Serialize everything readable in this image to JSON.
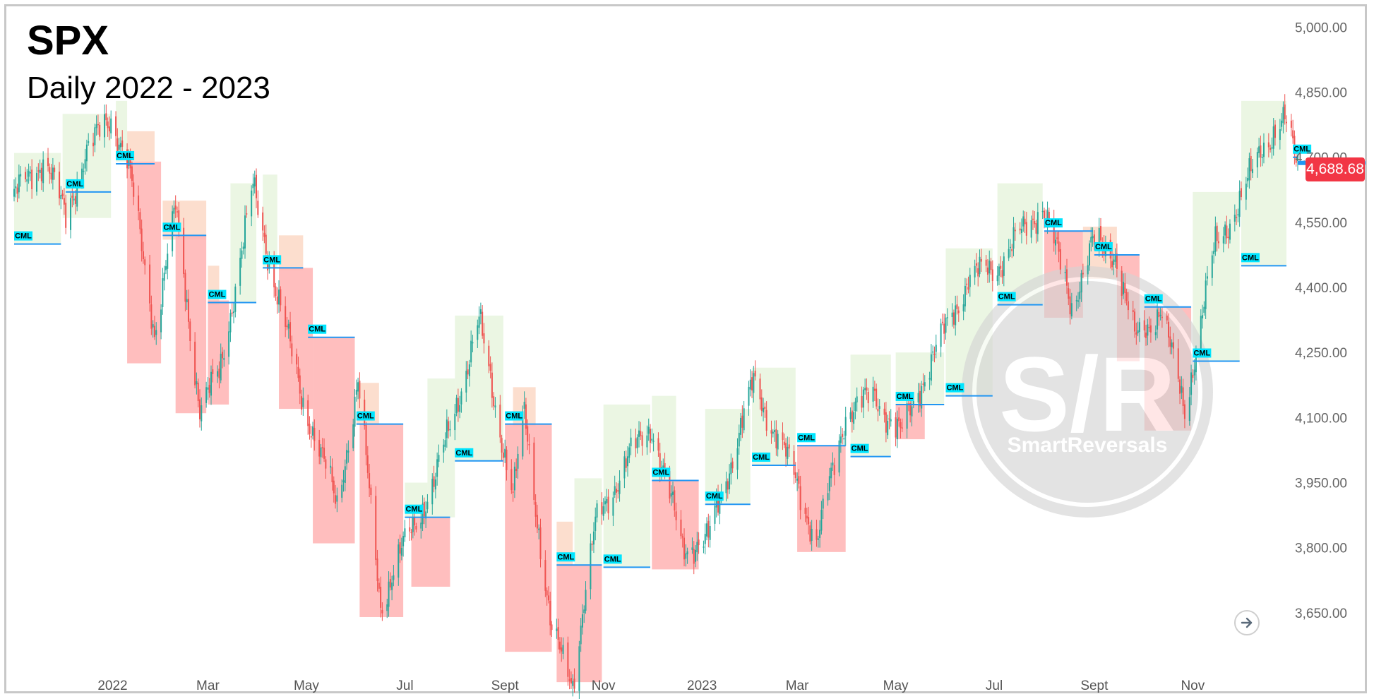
{
  "title": "SPX",
  "subtitle": "Daily 2022 - 2023",
  "price_label": "4,688.68",
  "marker_label": "CML",
  "watermark": {
    "logo": "S/R",
    "brand": "SmartReversals"
  },
  "colors": {
    "up_candle": "#26a69a",
    "down_candle": "#ef5350",
    "bull_zone": "#e6f4dc",
    "bear_zone": "#ffb3b3",
    "warn_zone": "#fbd3bd",
    "cml_line": "#2196f3",
    "cml_tag": "#00e5ff",
    "price_badge": "#f23645"
  },
  "icons": {
    "scroll_button": "arrow-right-circle-icon"
  },
  "chart_data": {
    "type": "candlestick",
    "title": "SPX",
    "subtitle": "Daily 2022 - 2023",
    "y_axis": {
      "ticks": [
        "5,000.00",
        "4,850.00",
        "4,700.00",
        "4,550.00",
        "4,400.00",
        "4,250.00",
        "4,100.00",
        "3,950.00",
        "3,800.00",
        "3,650.00"
      ],
      "ylim": [
        3500,
        5030
      ]
    },
    "x_axis": {
      "ticks": [
        "2022",
        "Mar",
        "May",
        "Jul",
        "Sept",
        "Nov",
        "2023",
        "Mar",
        "May",
        "Jul",
        "Sept",
        "Nov"
      ]
    },
    "last_price": 4688.68,
    "price_path": [
      [
        "2021-11-01",
        4610
      ],
      [
        "2021-11-20",
        4700
      ],
      [
        "2021-12-03",
        4560
      ],
      [
        "2021-12-15",
        4710
      ],
      [
        "2021-12-31",
        4790
      ],
      [
        "2022-01-10",
        4700
      ],
      [
        "2022-01-27",
        4300
      ],
      [
        "2022-02-09",
        4580
      ],
      [
        "2022-02-24",
        4120
      ],
      [
        "2022-03-08",
        4200
      ],
      [
        "2022-03-29",
        4630
      ],
      [
        "2022-04-12",
        4400
      ],
      [
        "2022-04-28",
        4150
      ],
      [
        "2022-05-20",
        3900
      ],
      [
        "2022-06-02",
        4180
      ],
      [
        "2022-06-16",
        3670
      ],
      [
        "2022-06-30",
        3800
      ],
      [
        "2022-07-20",
        3960
      ],
      [
        "2022-08-16",
        4320
      ],
      [
        "2022-09-06",
        3920
      ],
      [
        "2022-09-13",
        4110
      ],
      [
        "2022-09-30",
        3600
      ],
      [
        "2022-10-13",
        3490
      ],
      [
        "2022-10-20",
        3680
      ],
      [
        "2022-10-27",
        3850
      ],
      [
        "2022-11-15",
        4000
      ],
      [
        "2022-12-01",
        4080
      ],
      [
        "2022-12-20",
        3800
      ],
      [
        "2023-01-05",
        3820
      ],
      [
        "2023-02-02",
        4180
      ],
      [
        "2023-03-01",
        3950
      ],
      [
        "2023-03-13",
        3810
      ],
      [
        "2023-03-31",
        4110
      ],
      [
        "2023-04-18",
        4150
      ],
      [
        "2023-05-04",
        4060
      ],
      [
        "2023-05-19",
        4200
      ],
      [
        "2023-06-15",
        4420
      ],
      [
        "2023-07-03",
        4450
      ],
      [
        "2023-07-31",
        4590
      ],
      [
        "2023-08-18",
        4360
      ],
      [
        "2023-08-31",
        4500
      ],
      [
        "2023-09-14",
        4480
      ],
      [
        "2023-09-26",
        4280
      ],
      [
        "2023-10-12",
        4350
      ],
      [
        "2023-10-27",
        4120
      ],
      [
        "2023-11-15",
        4500
      ],
      [
        "2023-12-01",
        4600
      ],
      [
        "2023-12-14",
        4730
      ],
      [
        "2023-12-28",
        4780
      ],
      [
        "2024-01-05",
        4688.68
      ]
    ],
    "cml_levels": [
      {
        "start": "2021-11-01",
        "end": "2021-11-30",
        "value": 4500
      },
      {
        "start": "2021-12-03",
        "end": "2021-12-31",
        "value": 4620
      },
      {
        "start": "2022-01-03",
        "end": "2022-01-27",
        "value": 4685
      },
      {
        "start": "2022-02-01",
        "end": "2022-02-28",
        "value": 4520
      },
      {
        "start": "2022-03-01",
        "end": "2022-03-31",
        "value": 4365
      },
      {
        "start": "2022-04-04",
        "end": "2022-04-29",
        "value": 4445
      },
      {
        "start": "2022-05-02",
        "end": "2022-05-31",
        "value": 4285
      },
      {
        "start": "2022-06-01",
        "end": "2022-06-30",
        "value": 4085
      },
      {
        "start": "2022-07-01",
        "end": "2022-07-29",
        "value": 3870
      },
      {
        "start": "2022-08-01",
        "end": "2022-08-31",
        "value": 4000
      },
      {
        "start": "2022-09-01",
        "end": "2022-09-30",
        "value": 4085
      },
      {
        "start": "2022-10-03",
        "end": "2022-10-31",
        "value": 3760
      },
      {
        "start": "2022-11-01",
        "end": "2022-11-30",
        "value": 3755
      },
      {
        "start": "2022-12-01",
        "end": "2022-12-30",
        "value": 3955
      },
      {
        "start": "2023-01-03",
        "end": "2023-01-31",
        "value": 3900
      },
      {
        "start": "2023-02-01",
        "end": "2023-02-28",
        "value": 3990
      },
      {
        "start": "2023-03-01",
        "end": "2023-03-31",
        "value": 4035
      },
      {
        "start": "2023-04-03",
        "end": "2023-04-28",
        "value": 4010
      },
      {
        "start": "2023-05-01",
        "end": "2023-05-31",
        "value": 4130
      },
      {
        "start": "2023-06-01",
        "end": "2023-06-30",
        "value": 4150
      },
      {
        "start": "2023-07-03",
        "end": "2023-07-31",
        "value": 4360
      },
      {
        "start": "2023-08-01",
        "end": "2023-08-31",
        "value": 4530
      },
      {
        "start": "2023-09-01",
        "end": "2023-09-29",
        "value": 4475
      },
      {
        "start": "2023-10-02",
        "end": "2023-10-31",
        "value": 4355
      },
      {
        "start": "2023-11-01",
        "end": "2023-11-30",
        "value": 4230
      },
      {
        "start": "2023-12-01",
        "end": "2023-12-29",
        "value": 4450
      },
      {
        "start": "2024-01-02",
        "end": "2024-01-05",
        "value": 4700
      }
    ],
    "zones": [
      {
        "kind": "bull",
        "start": "2021-11-01",
        "end": "2021-11-30",
        "low": 4500,
        "high": 4710
      },
      {
        "kind": "bull",
        "start": "2021-12-01",
        "end": "2021-12-31",
        "low": 4560,
        "high": 4800
      },
      {
        "kind": "bull",
        "start": "2022-01-03",
        "end": "2022-01-10",
        "low": 4690,
        "high": 4830
      },
      {
        "kind": "warn",
        "start": "2022-01-10",
        "end": "2022-01-27",
        "low": 4690,
        "high": 4760
      },
      {
        "kind": "bear",
        "start": "2022-01-10",
        "end": "2022-01-31",
        "low": 4225,
        "high": 4690
      },
      {
        "kind": "warn",
        "start": "2022-02-01",
        "end": "2022-02-28",
        "low": 4510,
        "high": 4600
      },
      {
        "kind": "bear",
        "start": "2022-02-09",
        "end": "2022-02-28",
        "low": 4110,
        "high": 4520
      },
      {
        "kind": "warn",
        "start": "2022-03-01",
        "end": "2022-03-08",
        "low": 4360,
        "high": 4450
      },
      {
        "kind": "bear",
        "start": "2022-03-01",
        "end": "2022-03-14",
        "low": 4130,
        "high": 4370
      },
      {
        "kind": "bull",
        "start": "2022-03-15",
        "end": "2022-03-31",
        "low": 4365,
        "high": 4640
      },
      {
        "kind": "bull",
        "start": "2022-04-04",
        "end": "2022-04-13",
        "low": 4445,
        "high": 4660
      },
      {
        "kind": "warn",
        "start": "2022-04-14",
        "end": "2022-04-29",
        "low": 4440,
        "high": 4520
      },
      {
        "kind": "bear",
        "start": "2022-04-14",
        "end": "2022-05-05",
        "low": 4120,
        "high": 4445
      },
      {
        "kind": "bear",
        "start": "2022-05-05",
        "end": "2022-05-31",
        "low": 3810,
        "high": 4285
      },
      {
        "kind": "warn",
        "start": "2022-06-01",
        "end": "2022-06-15",
        "low": 4085,
        "high": 4180
      },
      {
        "kind": "bear",
        "start": "2022-06-03",
        "end": "2022-06-30",
        "low": 3640,
        "high": 4085
      },
      {
        "kind": "bull",
        "start": "2022-07-01",
        "end": "2022-07-15",
        "low": 3870,
        "high": 3950
      },
      {
        "kind": "bear",
        "start": "2022-07-05",
        "end": "2022-07-29",
        "low": 3710,
        "high": 3870
      },
      {
        "kind": "bull",
        "start": "2022-07-15",
        "end": "2022-08-01",
        "low": 3870,
        "high": 4190
      },
      {
        "kind": "bull",
        "start": "2022-08-01",
        "end": "2022-08-31",
        "low": 4000,
        "high": 4335
      },
      {
        "kind": "warn",
        "start": "2022-09-06",
        "end": "2022-09-20",
        "low": 4080,
        "high": 4170
      },
      {
        "kind": "bear",
        "start": "2022-09-01",
        "end": "2022-09-30",
        "low": 3560,
        "high": 4085
      },
      {
        "kind": "warn",
        "start": "2022-10-03",
        "end": "2022-10-13",
        "low": 3760,
        "high": 3860
      },
      {
        "kind": "bear",
        "start": "2022-10-03",
        "end": "2022-10-31",
        "low": 3490,
        "high": 3760
      },
      {
        "kind": "bull",
        "start": "2022-10-14",
        "end": "2022-10-31",
        "low": 3760,
        "high": 3960
      },
      {
        "kind": "bull",
        "start": "2022-11-01",
        "end": "2022-11-30",
        "low": 3755,
        "high": 4130
      },
      {
        "kind": "bull",
        "start": "2022-12-01",
        "end": "2022-12-16",
        "low": 3955,
        "high": 4150
      },
      {
        "kind": "bear",
        "start": "2022-12-01",
        "end": "2022-12-30",
        "low": 3750,
        "high": 3955
      },
      {
        "kind": "bull",
        "start": "2023-01-03",
        "end": "2023-01-31",
        "low": 3900,
        "high": 4120
      },
      {
        "kind": "bull",
        "start": "2023-02-01",
        "end": "2023-02-28",
        "low": 3990,
        "high": 4215
      },
      {
        "kind": "bear",
        "start": "2023-03-01",
        "end": "2023-03-31",
        "low": 3790,
        "high": 4035
      },
      {
        "kind": "bull",
        "start": "2023-04-03",
        "end": "2023-04-28",
        "low": 4010,
        "high": 4245
      },
      {
        "kind": "bear",
        "start": "2023-05-01",
        "end": "2023-05-19",
        "low": 4050,
        "high": 4130
      },
      {
        "kind": "bull",
        "start": "2023-05-01",
        "end": "2023-05-31",
        "low": 4130,
        "high": 4250
      },
      {
        "kind": "bull",
        "start": "2023-06-01",
        "end": "2023-06-30",
        "low": 4150,
        "high": 4490
      },
      {
        "kind": "bull",
        "start": "2023-07-03",
        "end": "2023-07-31",
        "low": 4360,
        "high": 4640
      },
      {
        "kind": "bear",
        "start": "2023-08-01",
        "end": "2023-08-25",
        "low": 4330,
        "high": 4530
      },
      {
        "kind": "warn",
        "start": "2023-08-25",
        "end": "2023-09-15",
        "low": 4420,
        "high": 4540
      },
      {
        "kind": "bear",
        "start": "2023-09-15",
        "end": "2023-09-29",
        "low": 4230,
        "high": 4475
      },
      {
        "kind": "bear",
        "start": "2023-10-02",
        "end": "2023-10-31",
        "low": 4070,
        "high": 4355
      },
      {
        "kind": "bull",
        "start": "2023-11-01",
        "end": "2023-11-30",
        "low": 4230,
        "high": 4620
      },
      {
        "kind": "bull",
        "start": "2023-12-01",
        "end": "2023-12-29",
        "low": 4450,
        "high": 4830
      }
    ]
  }
}
